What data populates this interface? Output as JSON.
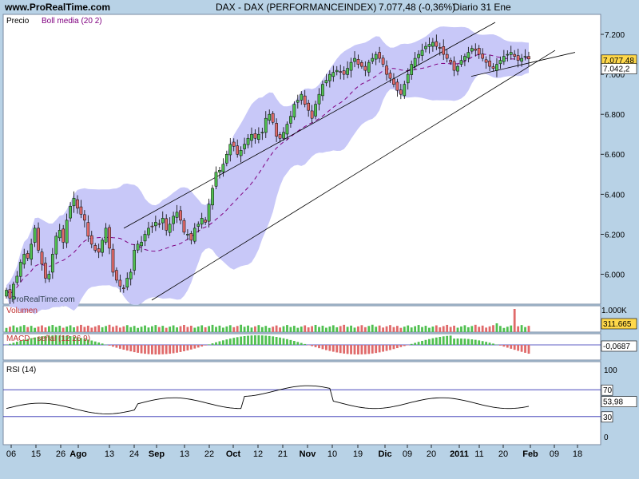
{
  "header": {
    "site": "www.ProRealTime.com",
    "title": "DAX - DAX (PERFORMANCEINDEX)",
    "price": "7.077,48 (-0,36%)",
    "period": "Diario  31 Ene"
  },
  "colors": {
    "background": "#b8d2e6",
    "panel": "#ffffff",
    "bollinger_band": "#c8c8f8",
    "bollinger_mid": "#800080",
    "up": "#50c050",
    "down": "#e06a6a",
    "rsi_line": "#000000",
    "guide": "#2a2ab0"
  },
  "price_panel": {
    "label": "Precio",
    "indicator_label": "Boll media (20 2)",
    "watermark": "ProRealTime.com",
    "last_price_tag": "7.077,48",
    "mid_tag": "7.042,2"
  },
  "volume_panel": {
    "label": "Volumen",
    "scale_top": "1.000K",
    "last_tag": "311.665"
  },
  "macd_panel": {
    "label": "MACD - señal (12 26 9)",
    "last_tag": "-0,0687"
  },
  "rsi_panel": {
    "label": "RSI (14)",
    "scale": [
      "100",
      "50",
      "0"
    ],
    "upper_level": "70",
    "lower_level": "30",
    "last_tag": "53,98"
  },
  "chart_data": [
    {
      "type": "line",
      "name": "candlestick-price",
      "x": [
        "06",
        "07",
        "08",
        "09",
        "12",
        "13",
        "14",
        "15",
        "16",
        "19",
        "20",
        "21",
        "22",
        "23",
        "26",
        "27",
        "28",
        "29",
        "30",
        "02",
        "03",
        "04",
        "05",
        "06",
        "09",
        "10",
        "11",
        "12",
        "13",
        "16",
        "17",
        "18",
        "19",
        "20",
        "23",
        "24",
        "25",
        "26",
        "27",
        "30",
        "31",
        "01",
        "02",
        "03",
        "06",
        "07",
        "08",
        "09",
        "10",
        "13",
        "14",
        "15",
        "16",
        "17",
        "20",
        "21",
        "22",
        "23",
        "24",
        "27",
        "28",
        "29",
        "30",
        "01",
        "04",
        "05",
        "06",
        "07",
        "08",
        "11",
        "12",
        "13",
        "14",
        "15",
        "18",
        "19",
        "20",
        "21",
        "22",
        "25",
        "26",
        "27",
        "28",
        "29",
        "01",
        "02",
        "03",
        "04",
        "05",
        "08",
        "09",
        "10",
        "11",
        "12",
        "15",
        "16",
        "17",
        "18",
        "19",
        "22",
        "23",
        "24",
        "25",
        "26",
        "29",
        "30",
        "01",
        "02",
        "03",
        "06",
        "07",
        "08",
        "09",
        "10",
        "13",
        "14",
        "15",
        "16",
        "17",
        "20",
        "21",
        "22",
        "23",
        "27",
        "28",
        "29",
        "30",
        "03",
        "04",
        "05",
        "06",
        "07",
        "10",
        "11",
        "12",
        "13",
        "14",
        "17",
        "18",
        "19",
        "20",
        "21",
        "24",
        "25",
        "26",
        "27",
        "28",
        "31"
      ],
      "ylim": [
        5850,
        7300
      ],
      "y_ticks": [
        6000,
        6200,
        6400,
        6600,
        6800,
        7000,
        7200
      ],
      "y_tick_labels": [
        "6.000",
        "6.200",
        "6.400",
        "6.600",
        "6.800",
        "7.000",
        "7.200"
      ],
      "x_ticks": [
        "06",
        "15",
        "26",
        "Ago",
        "13",
        "24",
        "Sep",
        "13",
        "22",
        "Oct",
        "12",
        "21",
        "Nov",
        "10",
        "19",
        "Dic",
        "09",
        "20",
        "2011",
        "11",
        "20",
        "Feb",
        "09",
        "18"
      ],
      "close": [
        5920,
        5880,
        5950,
        5990,
        6060,
        6100,
        6080,
        6150,
        6230,
        6120,
        6050,
        5980,
        6000,
        6100,
        6190,
        6220,
        6160,
        6270,
        6340,
        6380,
        6330,
        6300,
        6270,
        6190,
        6150,
        6120,
        6110,
        6170,
        6230,
        6130,
        6010,
        5970,
        5940,
        5930,
        5980,
        6010,
        6120,
        6150,
        6160,
        6200,
        6230,
        6240,
        6260,
        6250,
        6280,
        6220,
        6250,
        6290,
        6310,
        6270,
        6210,
        6200,
        6170,
        6230,
        6250,
        6280,
        6260,
        6350,
        6430,
        6510,
        6520,
        6550,
        6600,
        6650,
        6640,
        6600,
        6620,
        6650,
        6680,
        6700,
        6680,
        6700,
        6710,
        6780,
        6800,
        6760,
        6690,
        6680,
        6710,
        6750,
        6790,
        6850,
        6870,
        6900,
        6850,
        6820,
        6780,
        6850,
        6900,
        6950,
        6970,
        7000,
        7010,
        7020,
        7010,
        7000,
        7030,
        7060,
        7080,
        7050,
        7040,
        7020,
        7060,
        7080,
        7100,
        7080,
        7050,
        7000,
        6980,
        6950,
        6920,
        6900,
        6950,
        7000,
        7050,
        7080,
        7100,
        7120,
        7140,
        7150,
        7160,
        7140,
        7130,
        7100,
        7080,
        7060,
        7020,
        7040,
        7070,
        7090,
        7110,
        7130,
        7120,
        7100,
        7080,
        7060,
        7040,
        7030,
        7050,
        7070,
        7090,
        7100,
        7110,
        7090,
        7070,
        7080,
        7090,
        7077
      ]
    },
    {
      "type": "bar",
      "name": "volume",
      "ylim": [
        0,
        1000
      ]
    },
    {
      "type": "bar",
      "name": "macd-histogram"
    },
    {
      "type": "line",
      "name": "rsi-14",
      "ylim": [
        0,
        100
      ],
      "y_ticks": [
        100,
        50,
        0
      ],
      "levels": [
        70,
        30
      ]
    }
  ]
}
